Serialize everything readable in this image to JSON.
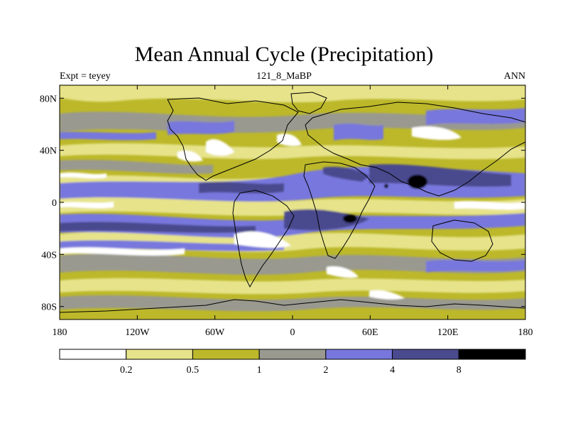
{
  "figure": {
    "title": "Mean Annual Cycle (Precipitation)",
    "subtitle_left": "Expt = teyey",
    "subtitle_center": "121_8_MaBP",
    "subtitle_right": "ANN"
  },
  "axes": {
    "x_ticks": [
      {
        "value": -180,
        "label": "180"
      },
      {
        "value": -120,
        "label": "120W"
      },
      {
        "value": -60,
        "label": "60W"
      },
      {
        "value": 0,
        "label": "0"
      },
      {
        "value": 60,
        "label": "60E"
      },
      {
        "value": 120,
        "label": "120E"
      },
      {
        "value": 180,
        "label": "180"
      }
    ],
    "y_ticks": [
      {
        "value": 80,
        "label": "80N"
      },
      {
        "value": 40,
        "label": "40N"
      },
      {
        "value": 0,
        "label": "0"
      },
      {
        "value": -40,
        "label": "40S"
      },
      {
        "value": -80,
        "label": "80S"
      }
    ],
    "xlim": [
      -180,
      180
    ],
    "ylim": [
      -90,
      90
    ]
  },
  "colorbar": {
    "colors": [
      "#ffffff",
      "#e6e38a",
      "#bcb82a",
      "#999990",
      "#7777dd",
      "#4a4a8e",
      "#000000"
    ],
    "labels": [
      "0.2",
      "0.5",
      "1",
      "2",
      "4",
      "8"
    ]
  }
}
